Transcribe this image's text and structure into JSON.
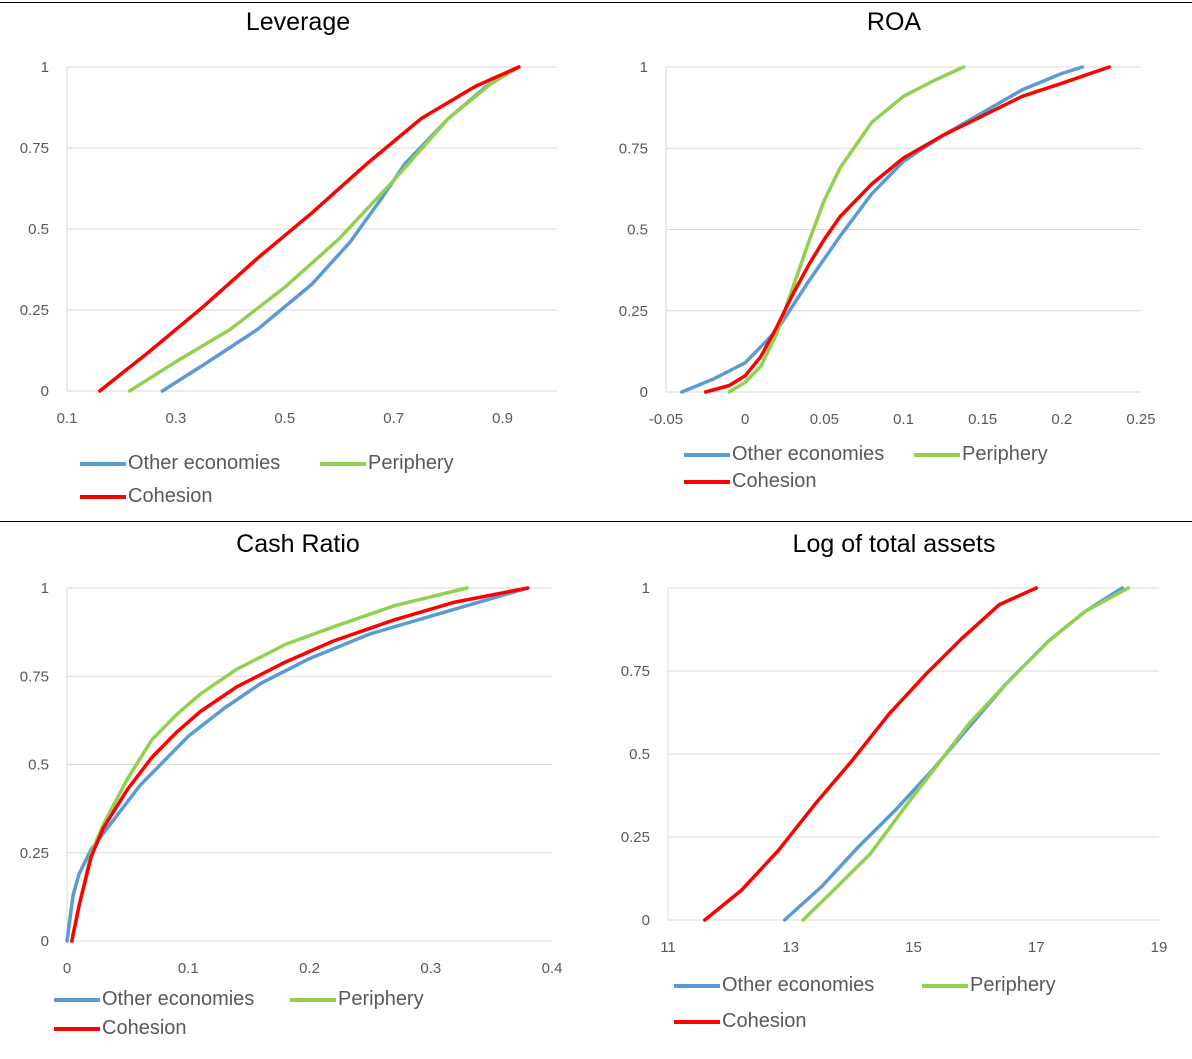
{
  "legend": {
    "other": "Other economies",
    "periphery": "Periphery",
    "cohesion": "Cohesion"
  },
  "colors": {
    "other": "#5b9bd5",
    "periphery": "#92d050",
    "cohesion": "#ff0000",
    "grid": "#d9d9d9",
    "tick": "#595959"
  },
  "chart_data": [
    {
      "type": "line",
      "title": "Leverage",
      "xlim": [
        0.1,
        1.0
      ],
      "ylim": [
        0,
        1
      ],
      "x_ticks": [
        0.1,
        0.3,
        0.5,
        0.7,
        0.9
      ],
      "x_tick_labels": [
        "0.1",
        "0.3",
        "0.5",
        "0.7",
        "0.9"
      ],
      "y_ticks": [
        0,
        0.25,
        0.5,
        0.75,
        1
      ],
      "y_tick_labels": [
        "0",
        "0.25",
        "0.5",
        "0.75",
        "1"
      ],
      "series": [
        {
          "name": "Other economies",
          "color": "#5b9bd5",
          "x": [
            0.275,
            0.35,
            0.45,
            0.55,
            0.62,
            0.68,
            0.72,
            0.8,
            0.87,
            0.93
          ],
          "y": [
            0,
            0.08,
            0.19,
            0.33,
            0.46,
            0.6,
            0.7,
            0.84,
            0.94,
            1
          ]
        },
        {
          "name": "Periphery",
          "color": "#92d050",
          "x": [
            0.215,
            0.3,
            0.4,
            0.5,
            0.6,
            0.7,
            0.8,
            0.88,
            0.93
          ],
          "y": [
            0,
            0.09,
            0.19,
            0.32,
            0.47,
            0.65,
            0.84,
            0.95,
            1
          ]
        },
        {
          "name": "Cohesion",
          "color": "#ff0000",
          "x": [
            0.16,
            0.25,
            0.35,
            0.45,
            0.55,
            0.65,
            0.75,
            0.85,
            0.93
          ],
          "y": [
            0,
            0.12,
            0.26,
            0.41,
            0.55,
            0.7,
            0.84,
            0.94,
            1
          ]
        }
      ]
    },
    {
      "type": "line",
      "title": "ROA",
      "xlim": [
        -0.05,
        0.25
      ],
      "ylim": [
        0,
        1
      ],
      "x_ticks": [
        -0.05,
        0,
        0.05,
        0.1,
        0.15,
        0.2,
        0.25
      ],
      "x_tick_labels": [
        "-0.05",
        "0",
        "0.05",
        "0.1",
        "0.15",
        "0.2",
        "0.25"
      ],
      "y_ticks": [
        0,
        0.25,
        0.5,
        0.75,
        1
      ],
      "y_tick_labels": [
        "0",
        "0.25",
        "0.5",
        "0.75",
        "1"
      ],
      "series": [
        {
          "name": "Other economies",
          "color": "#5b9bd5",
          "x": [
            -0.04,
            -0.02,
            0,
            0.02,
            0.04,
            0.06,
            0.08,
            0.1,
            0.125,
            0.15,
            0.175,
            0.2,
            0.213
          ],
          "y": [
            0,
            0.04,
            0.09,
            0.19,
            0.34,
            0.48,
            0.61,
            0.71,
            0.79,
            0.86,
            0.93,
            0.98,
            1
          ]
        },
        {
          "name": "Periphery",
          "color": "#92d050",
          "x": [
            -0.01,
            0,
            0.01,
            0.02,
            0.03,
            0.04,
            0.05,
            0.06,
            0.07,
            0.08,
            0.1,
            0.12,
            0.138
          ],
          "y": [
            0,
            0.03,
            0.08,
            0.18,
            0.32,
            0.46,
            0.59,
            0.69,
            0.76,
            0.83,
            0.91,
            0.96,
            1
          ]
        },
        {
          "name": "Cohesion",
          "color": "#ff0000",
          "x": [
            -0.025,
            -0.01,
            0,
            0.01,
            0.02,
            0.03,
            0.04,
            0.05,
            0.06,
            0.08,
            0.1,
            0.125,
            0.15,
            0.175,
            0.2,
            0.23
          ],
          "y": [
            0,
            0.02,
            0.05,
            0.11,
            0.2,
            0.3,
            0.39,
            0.47,
            0.54,
            0.64,
            0.72,
            0.79,
            0.85,
            0.91,
            0.95,
            1
          ]
        }
      ]
    },
    {
      "type": "line",
      "title": "Cash Ratio",
      "xlim": [
        0,
        0.4
      ],
      "ylim": [
        0,
        1
      ],
      "x_ticks": [
        0,
        0.1,
        0.2,
        0.3,
        0.4
      ],
      "x_tick_labels": [
        "0",
        "0.1",
        "0.2",
        "0.3",
        "0.4"
      ],
      "y_ticks": [
        0,
        0.25,
        0.5,
        0.75,
        1
      ],
      "y_tick_labels": [
        "0",
        "0.25",
        "0.5",
        "0.75",
        "1"
      ],
      "series": [
        {
          "name": "Other economies",
          "color": "#5b9bd5",
          "x": [
            0,
            0.005,
            0.01,
            0.02,
            0.04,
            0.06,
            0.08,
            0.1,
            0.13,
            0.16,
            0.2,
            0.25,
            0.3,
            0.35,
            0.38
          ],
          "y": [
            0,
            0.13,
            0.19,
            0.26,
            0.35,
            0.44,
            0.51,
            0.58,
            0.66,
            0.73,
            0.8,
            0.87,
            0.92,
            0.97,
            1
          ]
        },
        {
          "name": "Periphery",
          "color": "#92d050",
          "x": [
            0.004,
            0.01,
            0.02,
            0.03,
            0.05,
            0.07,
            0.09,
            0.11,
            0.14,
            0.18,
            0.22,
            0.27,
            0.33
          ],
          "y": [
            0,
            0.1,
            0.25,
            0.33,
            0.46,
            0.57,
            0.64,
            0.7,
            0.77,
            0.84,
            0.89,
            0.95,
            1
          ]
        },
        {
          "name": "Cohesion",
          "color": "#ff0000",
          "x": [
            0.004,
            0.01,
            0.02,
            0.03,
            0.05,
            0.07,
            0.09,
            0.11,
            0.14,
            0.18,
            0.22,
            0.27,
            0.32,
            0.38
          ],
          "y": [
            0,
            0.1,
            0.24,
            0.32,
            0.43,
            0.52,
            0.59,
            0.65,
            0.72,
            0.79,
            0.85,
            0.91,
            0.96,
            1
          ]
        }
      ]
    },
    {
      "type": "line",
      "title": "Log of total assets",
      "xlim": [
        11,
        19
      ],
      "ylim": [
        0,
        1
      ],
      "x_ticks": [
        11,
        13,
        15,
        17,
        19
      ],
      "x_tick_labels": [
        "11",
        "13",
        "15",
        "17",
        "19"
      ],
      "y_ticks": [
        0,
        0.25,
        0.5,
        0.75,
        1
      ],
      "y_tick_labels": [
        "0",
        "0.25",
        "0.5",
        "0.75",
        "1"
      ],
      "series": [
        {
          "name": "Other economies",
          "color": "#5b9bd5",
          "x": [
            12.9,
            13.5,
            14.1,
            14.7,
            15.3,
            15.9,
            16.5,
            17.2,
            17.8,
            18.4
          ],
          "y": [
            0,
            0.1,
            0.22,
            0.33,
            0.45,
            0.58,
            0.71,
            0.84,
            0.93,
            1
          ]
        },
        {
          "name": "Periphery",
          "color": "#92d050",
          "x": [
            13.2,
            13.7,
            14.3,
            14.9,
            15.4,
            15.9,
            16.5,
            17.2,
            17.8,
            18.5
          ],
          "y": [
            0,
            0.09,
            0.2,
            0.35,
            0.47,
            0.59,
            0.71,
            0.84,
            0.93,
            1
          ]
        },
        {
          "name": "Cohesion",
          "color": "#ff0000",
          "x": [
            11.6,
            12.2,
            12.8,
            13.4,
            14.0,
            14.6,
            15.2,
            15.8,
            16.4,
            17.0
          ],
          "y": [
            0,
            0.09,
            0.21,
            0.35,
            0.48,
            0.62,
            0.74,
            0.85,
            0.95,
            1
          ]
        }
      ]
    }
  ]
}
